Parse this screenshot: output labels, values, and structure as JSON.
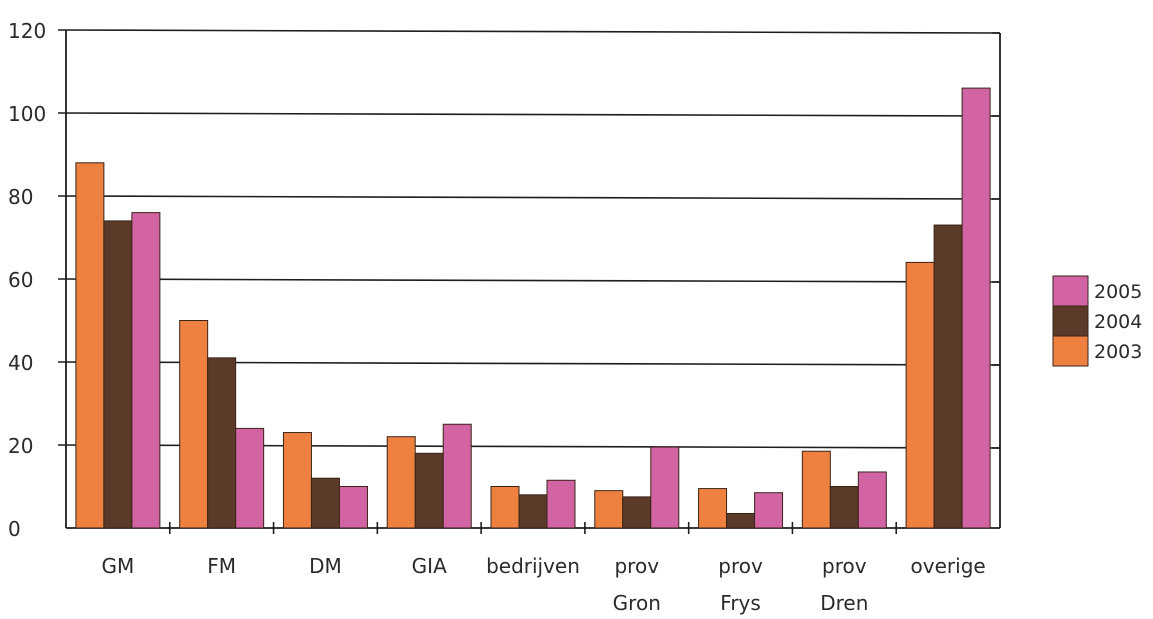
{
  "chart_data": {
    "type": "bar",
    "categories": [
      [
        "GM"
      ],
      [
        "FM"
      ],
      [
        "DM"
      ],
      [
        "GIA"
      ],
      [
        "bedrijven"
      ],
      [
        "prov",
        "Gron"
      ],
      [
        "prov",
        "Frys"
      ],
      [
        "prov",
        "Dren"
      ],
      [
        "overige"
      ]
    ],
    "series": [
      {
        "name": "2003",
        "color": "#ef8140",
        "values": [
          88,
          50,
          23,
          22,
          10,
          9,
          9.5,
          18.5,
          64
        ]
      },
      {
        "name": "2004",
        "color": "#5b3a2a",
        "values": [
          74,
          41,
          12,
          18,
          8,
          7.5,
          3.5,
          10,
          73
        ]
      },
      {
        "name": "2005",
        "color": "#d264a3",
        "values": [
          76,
          24,
          10,
          25,
          11.5,
          19.5,
          8.5,
          13.5,
          106
        ]
      }
    ],
    "legend_order": [
      "2005",
      "2004",
      "2003"
    ],
    "legend_position": "right",
    "ylim": [
      0,
      120
    ],
    "yticks": [
      0,
      20,
      40,
      60,
      80,
      100,
      120
    ],
    "grid": true,
    "title": "",
    "xlabel": "",
    "ylabel": ""
  }
}
